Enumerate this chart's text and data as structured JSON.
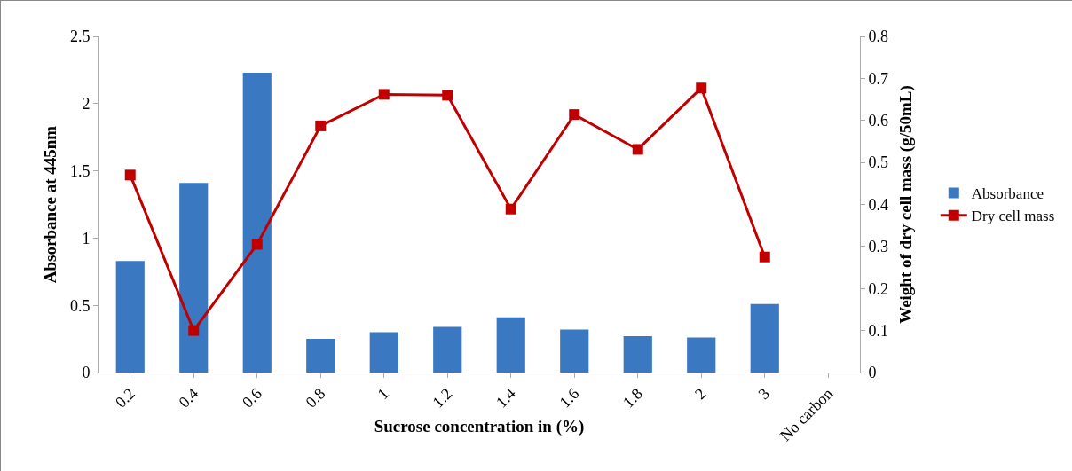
{
  "chart_data": {
    "type": "bar",
    "xlabel": "Sucrose concentration in (%)",
    "ylabel": "Absorbance at 445nm",
    "y2label": "Weight of dry cell mass (g/50mL)",
    "categories": [
      "0.2",
      "0.4",
      "0.6",
      "0.8",
      "1",
      "1.2",
      "1.4",
      "1.6",
      "1.8",
      "2",
      "3",
      "No carbon"
    ],
    "series": [
      {
        "name": "Absorbance",
        "color": "#3a78c2",
        "values": [
          0.83,
          1.41,
          2.23,
          0.25,
          0.3,
          0.34,
          0.41,
          0.32,
          0.27,
          0.26,
          0.51,
          null
        ]
      },
      {
        "name": "Dry cell mass",
        "type": "line",
        "axis": "y2",
        "color": "#c00000",
        "marker": "square",
        "values": [
          0.47,
          0.1,
          0.305,
          0.587,
          0.662,
          0.66,
          0.389,
          0.614,
          0.531,
          0.677,
          0.275,
          null
        ]
      }
    ],
    "ylim": [
      0,
      2.5
    ],
    "yticks": [
      0,
      0.5,
      1,
      1.5,
      2,
      2.5
    ],
    "y2lim": [
      0,
      0.8
    ],
    "y2ticks": [
      0,
      0.1,
      0.2,
      0.3,
      0.4,
      0.5,
      0.6,
      0.7,
      0.8
    ],
    "grid": false,
    "legend": "right"
  }
}
